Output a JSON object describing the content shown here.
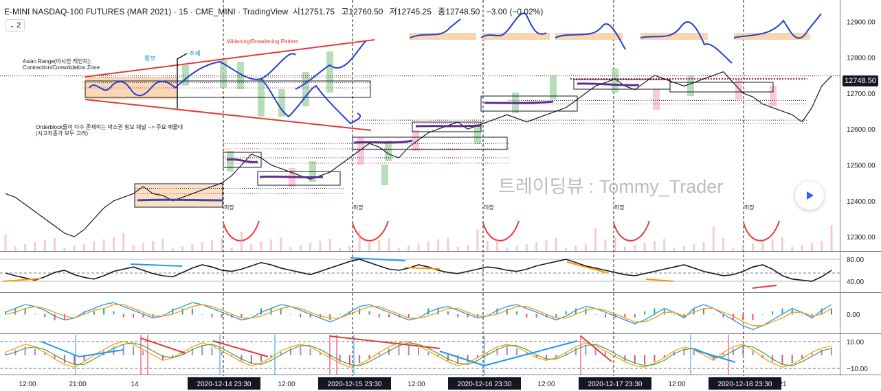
{
  "header": {
    "title": "E-MINI NASDAQ-100 FUTURES (MAR 2021) · 15 · CME_MINI · TradingView",
    "open_label": "시",
    "open": "12751.75",
    "high_label": "고",
    "high": "12760.50",
    "low_label": "저",
    "low": "12745.25",
    "close_label": "종",
    "close": "12748.50",
    "change": "−3.00 (−0.02%)",
    "pane_button": "2"
  },
  "watermark": "트레이딩뷰 : Tommy_Trader",
  "annotations": {
    "asian_range": "Asian Range(아시안 레인지):",
    "asian_range_2": "Contraction/Consolidation Zone",
    "pattern": "Widening/Broadening Pattern",
    "sideways": "횡보",
    "trend": "추세",
    "orderblock": "Orderblock들이 다수 존재하는 박스권 횡보 채널 --> 주요 매물대",
    "orderblock_2": "(시고저종가 모두 고려)",
    "us_session": "미장"
  },
  "colors": {
    "price_line": "#131722",
    "up": "#26a69a",
    "down": "#ef5350",
    "pattern_line": "#e53935",
    "wave": "#1e3fd0",
    "orange_zone": "#f9cb9c",
    "green_box": "#a5d6a7",
    "pink_box": "#f8bbd0",
    "purple": "#6a1b9a",
    "macd_blue": "#2196f3",
    "macd_orange": "#ff9800",
    "volume": "#ef9a9a"
  },
  "chart_data": {
    "type": "line",
    "title": "E-MINI NASDAQ-100 FUTURES (MAR 2021) · 15 · CME_MINI",
    "ylabel": "",
    "ylim": [
      12260,
      12960
    ],
    "y_ticks": [
      12300,
      12400,
      12500,
      12600,
      12700,
      12800,
      12900
    ],
    "y_tick_labels": [
      "12300.00",
      "12400.00",
      "12500.00",
      "12600.00",
      "12700.00",
      "12800.00",
      "12900.00"
    ],
    "last_price": 12748.5,
    "last_price_label": "12748.50",
    "x_tick_labels": [
      "12:00",
      "21:00",
      "14",
      "2020-12-14   23:30",
      "12:00",
      "2020-12-15   23:30",
      "12:00",
      "2020-12-16   23:30",
      "12:00",
      "2020-12-17   23:30",
      "12:00",
      "2020-12-18   23:30",
      "21"
    ],
    "session_markers": [
      "2020-12-14 23:30",
      "2020-12-15 23:30",
      "2020-12-16 23:30",
      "2020-12-17 23:30",
      "2020-12-18 23:30"
    ],
    "series": [
      {
        "values": [
          12420,
          12410,
          12390,
          12370,
          12350,
          12330,
          12310,
          12300,
          12320,
          12350,
          12380,
          12400,
          12410,
          12420,
          12440,
          12420,
          12415,
          12400,
          12410,
          12420,
          12430,
          12440,
          12450,
          12470,
          12500,
          12530,
          12520,
          12500,
          12490,
          12480,
          12470,
          12460,
          12470,
          12480,
          12500,
          12520,
          12540,
          12560,
          12550,
          12530,
          12520,
          12550,
          12570,
          12590,
          12600,
          12610,
          12620,
          12600,
          12610,
          12620,
          12630,
          12640,
          12630,
          12620,
          12630,
          12640,
          12650,
          12660,
          12680,
          12700,
          12720,
          12730,
          12740,
          12720,
          12710,
          12730,
          12750,
          12740,
          12730,
          12720,
          12730,
          12740,
          12750,
          12760,
          12730,
          12700,
          12690,
          12670,
          12660,
          12650,
          12640,
          12620,
          12660,
          12720,
          12748.5
        ]
      }
    ],
    "zone_levels": [
      12745,
      12730,
      12715,
      12680,
      12670,
      12625,
      12615,
      12560,
      12545,
      12520,
      12505,
      12435,
      12420
    ],
    "rsi": {
      "ylim": [
        20,
        90
      ],
      "ticks": [
        40,
        80
      ],
      "tick_labels": [
        "40.00",
        "80.00"
      ],
      "values": [
        55,
        50,
        46,
        42,
        48,
        56,
        60,
        52,
        47,
        44,
        50,
        58,
        62,
        66,
        60,
        54,
        50,
        48,
        56,
        64,
        70,
        66,
        60,
        58,
        62,
        68,
        74,
        70,
        64,
        60,
        56,
        52,
        58,
        64,
        70,
        76,
        80,
        74,
        68,
        62,
        60,
        64,
        70,
        66,
        60,
        56,
        54,
        58,
        62,
        66,
        64,
        60,
        58,
        62,
        68,
        72,
        76,
        80,
        74,
        68,
        64,
        60,
        56,
        52,
        50,
        54,
        58,
        62,
        66,
        70,
        64,
        58,
        54,
        50,
        52,
        58,
        66,
        70,
        62,
        50,
        44,
        42,
        40,
        48,
        60
      ]
    },
    "macd": {
      "ylim": [
        -1,
        1
      ],
      "ticks": [
        0
      ],
      "tick_labels": [
        "0.00"
      ],
      "macd": [
        0.1,
        0.3,
        0.5,
        0.4,
        0.2,
        -0.1,
        -0.3,
        -0.2,
        0.1,
        0.3,
        0.5,
        0.6,
        0.4,
        0.2,
        0.0,
        -0.2,
        -0.1,
        0.2,
        0.4,
        0.6,
        0.5,
        0.3,
        0.1,
        -0.1,
        -0.3,
        -0.2,
        0.1,
        0.3,
        0.5,
        0.4,
        0.2,
        0.0,
        -0.2,
        -0.4,
        -0.2,
        0.1,
        0.4,
        0.5,
        0.3,
        0.1,
        -0.1,
        -0.3,
        -0.2,
        0.1,
        0.3,
        0.4,
        0.2,
        0.0,
        -0.2,
        -0.1,
        0.2,
        0.4,
        0.5,
        0.3,
        0.1,
        -0.1,
        -0.3,
        -0.1,
        0.2,
        0.4,
        0.3,
        0.1,
        -0.1,
        -0.3,
        -0.5,
        -0.3,
        0.0,
        0.3,
        0.1,
        -0.2,
        0.3,
        0.5,
        0.3,
        0.0,
        -0.3,
        -0.6,
        -0.8,
        -0.6,
        -0.3,
        0.0,
        0.3,
        0.1,
        -0.2,
        0.2,
        0.5
      ],
      "signal": [
        0.0,
        0.1,
        0.3,
        0.4,
        0.3,
        0.1,
        -0.1,
        -0.2,
        0.0,
        0.2,
        0.3,
        0.5,
        0.5,
        0.3,
        0.1,
        -0.1,
        -0.1,
        0.0,
        0.2,
        0.4,
        0.5,
        0.4,
        0.2,
        0.0,
        -0.2,
        -0.2,
        -0.1,
        0.1,
        0.3,
        0.4,
        0.3,
        0.1,
        -0.1,
        -0.2,
        -0.2,
        0.0,
        0.2,
        0.4,
        0.4,
        0.2,
        0.0,
        -0.2,
        -0.2,
        -0.1,
        0.1,
        0.3,
        0.3,
        0.1,
        -0.1,
        -0.1,
        0.0,
        0.2,
        0.4,
        0.4,
        0.2,
        0.0,
        -0.2,
        -0.2,
        0.0,
        0.2,
        0.3,
        0.2,
        0.0,
        -0.2,
        -0.4,
        -0.4,
        -0.2,
        0.1,
        0.1,
        -0.1,
        0.1,
        0.3,
        0.3,
        0.1,
        -0.1,
        -0.4,
        -0.6,
        -0.6,
        -0.4,
        -0.2,
        0.1,
        0.1,
        -0.1,
        0.0,
        0.3
      ]
    },
    "osc": {
      "ylim": [
        -14,
        14
      ],
      "ticks": [
        10,
        -10
      ],
      "tick_labels": [
        "10.00",
        "−10.00"
      ],
      "line1": [
        2,
        5,
        8,
        6,
        2,
        -3,
        -7,
        -9,
        -5,
        0,
        4,
        8,
        10,
        8,
        4,
        0,
        -4,
        -2,
        2,
        6,
        9,
        7,
        3,
        -1,
        -5,
        -8,
        -6,
        -2,
        3,
        6,
        8,
        6,
        2,
        -2,
        -6,
        -9,
        -7,
        -3,
        2,
        6,
        9,
        10,
        7,
        3,
        -1,
        -5,
        -8,
        -6,
        -2,
        2,
        6,
        8,
        6,
        2,
        -2,
        -4,
        -2,
        2,
        6,
        9,
        7,
        3,
        -1,
        -5,
        -8,
        -9,
        -6,
        -2,
        3,
        6,
        4,
        0,
        -4,
        2,
        6,
        8,
        4,
        -2,
        -6,
        -9,
        -7,
        -3,
        2,
        5,
        7
      ],
      "line2": [
        0,
        2,
        5,
        6,
        4,
        0,
        -4,
        -7,
        -7,
        -3,
        1,
        5,
        8,
        9,
        7,
        3,
        -1,
        -2,
        0,
        4,
        7,
        8,
        5,
        1,
        -3,
        -6,
        -7,
        -4,
        0,
        4,
        7,
        7,
        4,
        0,
        -4,
        -7,
        -8,
        -5,
        -1,
        3,
        7,
        9,
        8,
        5,
        1,
        -3,
        -6,
        -7,
        -4,
        0,
        4,
        7,
        7,
        4,
        0,
        -3,
        -3,
        0,
        4,
        7,
        8,
        5,
        1,
        -3,
        -6,
        -8,
        -7,
        -4,
        1,
        4,
        5,
        2,
        -2,
        -1,
        3,
        7,
        6,
        2,
        -3,
        -7,
        -8,
        -5,
        -1,
        3,
        5
      ]
    }
  }
}
